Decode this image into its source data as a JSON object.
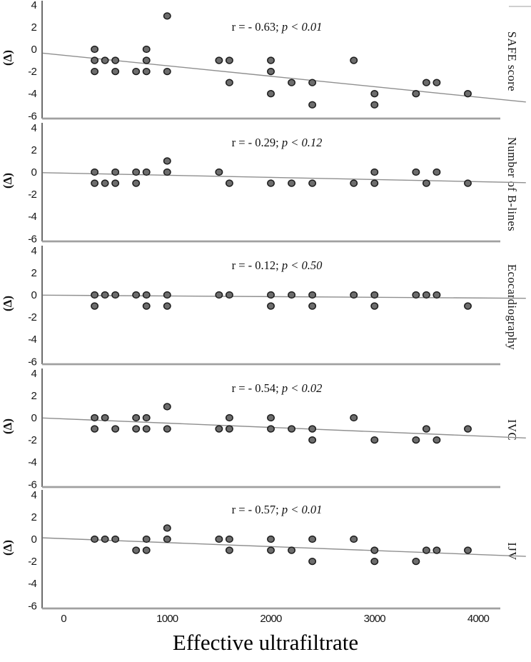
{
  "chart_data": {
    "type": "scatter",
    "title": "",
    "xlabel": "Effective ultrafiltrate",
    "ylabel": "(Δ)",
    "x_ticks": [
      0,
      1000,
      2000,
      3000,
      4000
    ],
    "y_ticks": [
      4,
      2,
      0,
      -2,
      -4,
      -6
    ],
    "xlim": [
      -200,
      4460
    ],
    "ylim": [
      -6,
      4
    ],
    "grid": false,
    "legend": "none",
    "colors": {
      "dot_fill": "#6d6d6d",
      "dot_stroke": "#1c1c1c",
      "trend_line": "#8f8f8f",
      "y_axis": "#3c3c3c",
      "x_baseline": "#a0a0a0",
      "top_right_mark": "#cfcfcf",
      "text": "#111111"
    },
    "panels": [
      {
        "label": "SAFE score",
        "r_text": "r = - 0.63;",
        "p_text": " p < 0.01",
        "points": [
          [
            1000,
            3
          ],
          [
            300,
            0
          ],
          [
            800,
            0
          ],
          [
            300,
            -1
          ],
          [
            400,
            -1
          ],
          [
            500,
            -1
          ],
          [
            800,
            -1
          ],
          [
            1500,
            -1
          ],
          [
            1600,
            -1
          ],
          [
            2000,
            -1
          ],
          [
            2800,
            -1
          ],
          [
            300,
            -2
          ],
          [
            500,
            -2
          ],
          [
            700,
            -2
          ],
          [
            800,
            -2
          ],
          [
            1000,
            -2
          ],
          [
            2000,
            -2
          ],
          [
            1600,
            -3
          ],
          [
            2200,
            -3
          ],
          [
            2400,
            -3
          ],
          [
            3500,
            -3
          ],
          [
            3600,
            -3
          ],
          [
            2000,
            -4
          ],
          [
            3000,
            -4
          ],
          [
            3400,
            -4
          ],
          [
            3900,
            -4
          ],
          [
            2400,
            -5
          ],
          [
            3000,
            -5
          ]
        ],
        "trend": {
          "x": [
            -200,
            4460
          ],
          "y": [
            -0.35,
            -4.75
          ]
        }
      },
      {
        "label": "Number of B-lines",
        "r_text": "r = - 0.29;",
        "p_text": " p < 0.12",
        "points": [
          [
            1000,
            1
          ],
          [
            300,
            0
          ],
          [
            500,
            0
          ],
          [
            700,
            0
          ],
          [
            800,
            0
          ],
          [
            1000,
            0
          ],
          [
            1500,
            0
          ],
          [
            3000,
            0
          ],
          [
            3400,
            0
          ],
          [
            3600,
            0
          ],
          [
            300,
            -1
          ],
          [
            400,
            -1
          ],
          [
            500,
            -1
          ],
          [
            700,
            -1
          ],
          [
            1600,
            -1
          ],
          [
            2000,
            -1
          ],
          [
            2200,
            -1
          ],
          [
            2400,
            -1
          ],
          [
            2800,
            -1
          ],
          [
            3000,
            -1
          ],
          [
            3500,
            -1
          ],
          [
            3900,
            -1
          ]
        ],
        "trend": {
          "x": [
            -200,
            4460
          ],
          "y": [
            -0.05,
            -0.95
          ]
        }
      },
      {
        "label": "Ecocardiography",
        "r_text": "r = - 0.12;",
        "p_text": " p < 0.50",
        "points": [
          [
            300,
            0
          ],
          [
            400,
            0
          ],
          [
            500,
            0
          ],
          [
            700,
            0
          ],
          [
            800,
            0
          ],
          [
            1000,
            0
          ],
          [
            1500,
            0
          ],
          [
            1600,
            0
          ],
          [
            2000,
            0
          ],
          [
            2200,
            0
          ],
          [
            2400,
            0
          ],
          [
            2800,
            0
          ],
          [
            3000,
            0
          ],
          [
            3400,
            0
          ],
          [
            3500,
            0
          ],
          [
            3600,
            0
          ],
          [
            300,
            -1
          ],
          [
            800,
            -1
          ],
          [
            1000,
            -1
          ],
          [
            2000,
            -1
          ],
          [
            2400,
            -1
          ],
          [
            3000,
            -1
          ],
          [
            3900,
            -1
          ]
        ],
        "trend": {
          "x": [
            -200,
            4460
          ],
          "y": [
            -0.02,
            -0.3
          ]
        }
      },
      {
        "label": "IVC",
        "r_text": "r = - 0.54;",
        "p_text": " p < 0.02",
        "points": [
          [
            1000,
            1
          ],
          [
            300,
            0
          ],
          [
            400,
            0
          ],
          [
            700,
            0
          ],
          [
            800,
            0
          ],
          [
            1600,
            0
          ],
          [
            2000,
            0
          ],
          [
            2800,
            0
          ],
          [
            300,
            -1
          ],
          [
            500,
            -1
          ],
          [
            700,
            -1
          ],
          [
            800,
            -1
          ],
          [
            1000,
            -1
          ],
          [
            1500,
            -1
          ],
          [
            1600,
            -1
          ],
          [
            2000,
            -1
          ],
          [
            2200,
            -1
          ],
          [
            2400,
            -1
          ],
          [
            3500,
            -1
          ],
          [
            3900,
            -1
          ],
          [
            2400,
            -2
          ],
          [
            3000,
            -2
          ],
          [
            3400,
            -2
          ],
          [
            3600,
            -2
          ]
        ],
        "trend": {
          "x": [
            -200,
            4460
          ],
          "y": [
            -0.02,
            -1.82
          ]
        }
      },
      {
        "label": "IJV",
        "r_text": "r = - 0.57;",
        "p_text": " p < 0.01",
        "points": [
          [
            1000,
            1
          ],
          [
            300,
            0
          ],
          [
            400,
            0
          ],
          [
            500,
            0
          ],
          [
            800,
            0
          ],
          [
            1000,
            0
          ],
          [
            1500,
            0
          ],
          [
            1600,
            0
          ],
          [
            2000,
            0
          ],
          [
            2400,
            0
          ],
          [
            2800,
            0
          ],
          [
            700,
            -1
          ],
          [
            800,
            -1
          ],
          [
            1600,
            -1
          ],
          [
            2000,
            -1
          ],
          [
            2200,
            -1
          ],
          [
            3000,
            -1
          ],
          [
            3500,
            -1
          ],
          [
            3600,
            -1
          ],
          [
            3900,
            -1
          ],
          [
            2400,
            -2
          ],
          [
            3000,
            -2
          ],
          [
            3400,
            -2
          ]
        ],
        "trend": {
          "x": [
            -200,
            4460
          ],
          "y": [
            0.12,
            -1.55
          ]
        }
      }
    ]
  }
}
